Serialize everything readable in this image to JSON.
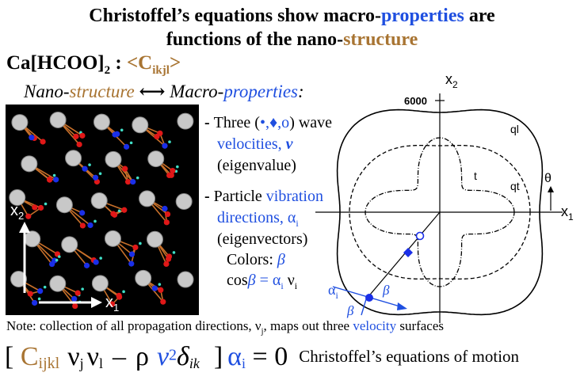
{
  "title": {
    "line1_pre": "Christoffel’s equations show macro-",
    "line1_blue": "properties",
    "line1_post": " are",
    "line2_pre": "functions of the nano-",
    "line2_brown": "structure"
  },
  "formula_label": {
    "compound": "Ca[HCOO]",
    "subscript": "2",
    "colon": " : ",
    "tensor": "<C",
    "tensor_sub": "ikjl",
    "tensor_close": ">"
  },
  "labels": {
    "nano_prefix": "Nano-",
    "nano_suffix": "structure",
    "arrow": "⟷",
    "macro_prefix": "Macro-",
    "macro_suffix": "properties",
    "macro_colon": ":"
  },
  "crystal": {
    "x2_label": "x",
    "x2_sub": "2",
    "x1_label": "x",
    "x1_sub": "1"
  },
  "bullets": {
    "b1_dash": "- ",
    "b1_l1_pre": "Three (",
    "b1_symbols": "•,♦,o",
    "b1_l1_post": ") wave",
    "b1_l2": "velocities, ",
    "b1_l2_var": "v",
    "b1_l3": "(eigenvalue)",
    "b2_dash": "- ",
    "b2_l1_pre": "Particle ",
    "b2_l1_blue": "vibration",
    "b2_l2": "directions, α",
    "b2_l2_sub": "i",
    "b2_l3": "(eigenvectors)",
    "colors_label": "Colors: ",
    "colors_beta": "β",
    "cos_pre": "cos",
    "cos_beta": "β",
    "cos_eq": " = α",
    "cos_sub_i": "i",
    "cos_nu": " ν",
    "cos_sub_i2": "i"
  },
  "plot": {
    "x2": "x",
    "x2_sub": "2",
    "y_tick": "6000",
    "x1": "x",
    "x1_sub": "1",
    "theta": "θ",
    "curve_ql": "ql",
    "curve_t": "t",
    "curve_qt": "qt",
    "alpha": "α",
    "alpha_sub": "i",
    "beta1": "β",
    "beta2": "β"
  },
  "note": {
    "pre": "Note: collection of all propagation directions, ν",
    "sub": "j",
    "mid": ", maps out three ",
    "blue": "velocity",
    "post": " surfaces"
  },
  "equation": {
    "open": "[ ",
    "c": "C",
    "c_sub": "ijkl",
    "nu_j": "ν",
    "nu_j_sub": "j",
    "nu_l": "ν",
    "nu_l_sub": "l",
    "minus": "–",
    "rho": "ρ",
    "v": "v",
    "v_sup": "2",
    "delta": "δ",
    "delta_sub": "ik",
    "close": "]",
    "alpha": "α",
    "alpha_sub": "i",
    "eq_zero": " = 0",
    "caption": "Christoffel’s equations of motion"
  },
  "colors": {
    "brown": "#a87432",
    "blue": "#1f4fe0",
    "atom_red": "#e01818",
    "atom_blue": "#1a2fe8",
    "atom_grey": "#c8c8c8",
    "bond": "#c8702a"
  }
}
